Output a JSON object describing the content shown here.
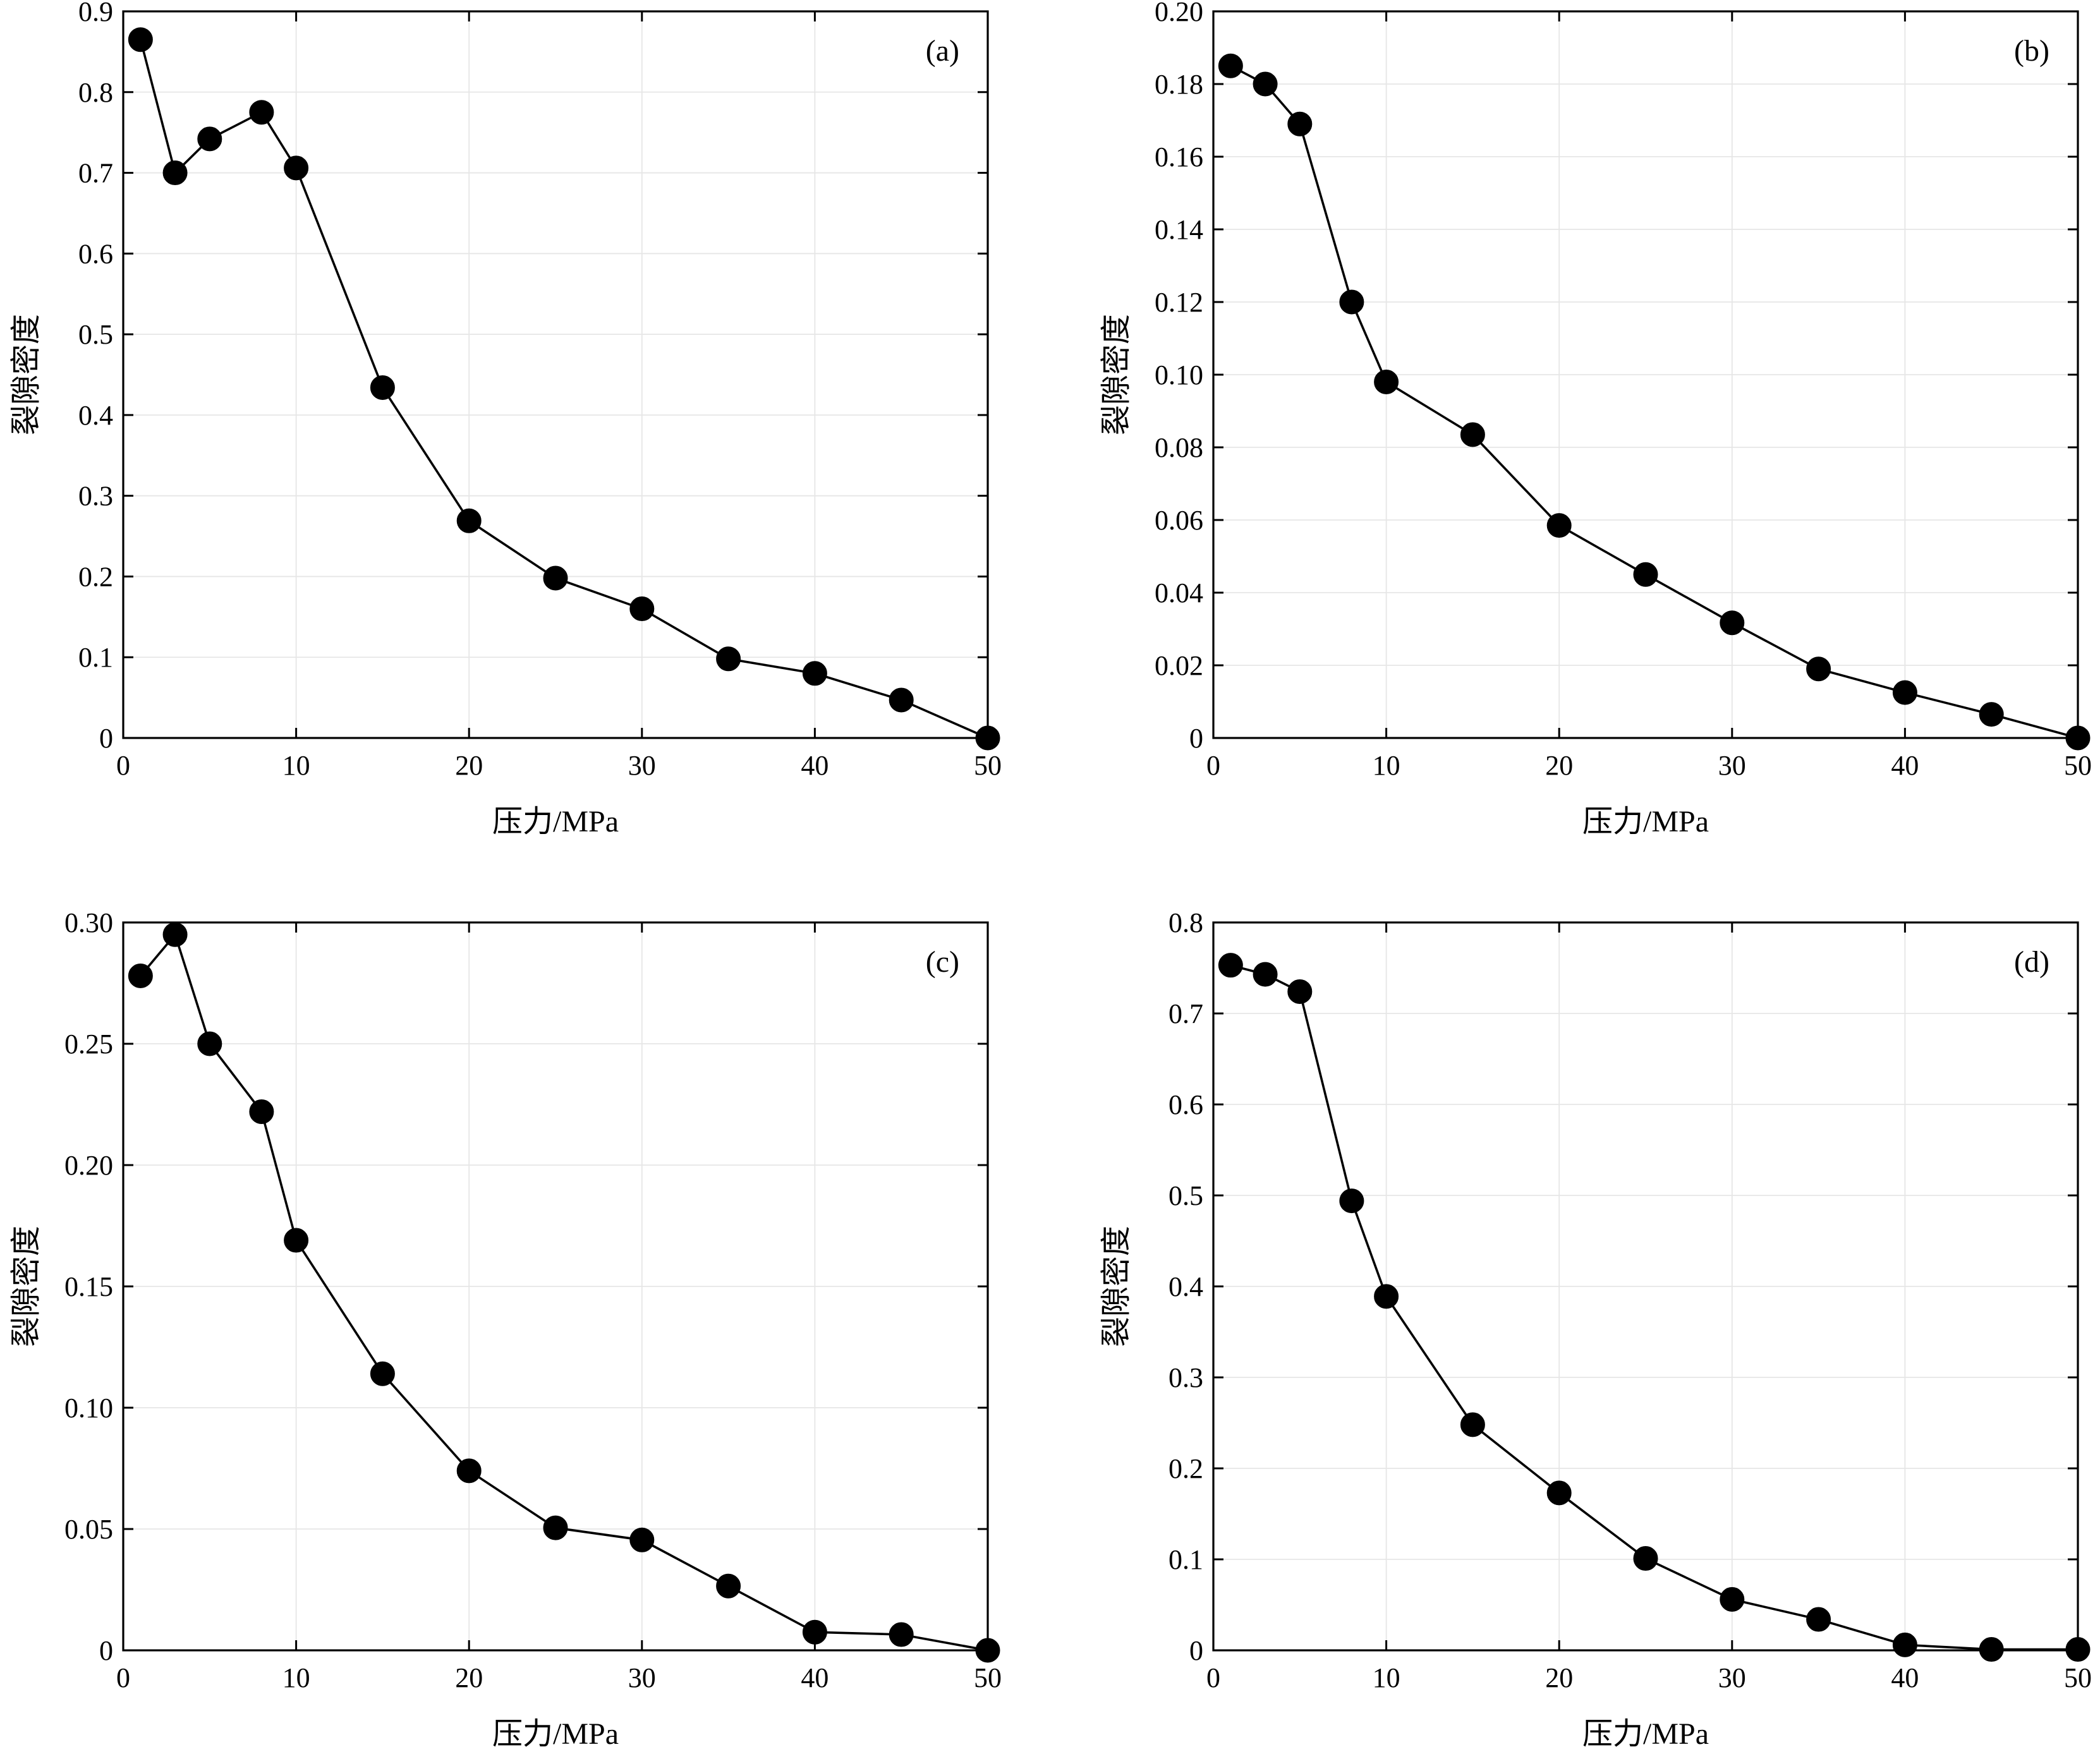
{
  "chart_data": [
    {
      "type": "line",
      "panel_label": "(a)",
      "xlabel": "压力/MPa",
      "ylabel": "裂隙密度",
      "xlim": [
        0,
        50
      ],
      "ylim": [
        0,
        0.9
      ],
      "xticks": [
        0,
        10,
        20,
        30,
        40,
        50
      ],
      "xtick_labels": [
        "0",
        "10",
        "20",
        "30",
        "40",
        "50"
      ],
      "yticks": [
        0,
        0.1,
        0.2,
        0.3,
        0.4,
        0.5,
        0.6,
        0.7,
        0.8,
        0.9
      ],
      "ytick_labels": [
        "0",
        "0.1",
        "0.2",
        "0.3",
        "0.4",
        "0.5",
        "0.6",
        "0.7",
        "0.8",
        "0.9"
      ],
      "grid": true,
      "color": "#000000",
      "marker": "filled-circle",
      "series": [
        {
          "x": [
            1,
            3,
            5,
            8,
            10,
            15,
            20,
            25,
            30,
            35,
            40,
            45,
            50
          ],
          "y": [
            0.865,
            0.7,
            0.742,
            0.775,
            0.706,
            0.434,
            0.269,
            0.198,
            0.16,
            0.098,
            0.08,
            0.047,
            0.0
          ]
        }
      ]
    },
    {
      "type": "line",
      "panel_label": "(b)",
      "xlabel": "压力/MPa",
      "ylabel": "裂隙密度",
      "xlim": [
        0,
        50
      ],
      "ylim": [
        0,
        0.2
      ],
      "xticks": [
        0,
        10,
        20,
        30,
        40,
        50
      ],
      "xtick_labels": [
        "0",
        "10",
        "20",
        "30",
        "40",
        "50"
      ],
      "yticks": [
        0,
        0.02,
        0.04,
        0.06,
        0.08,
        0.1,
        0.12,
        0.14,
        0.16,
        0.18,
        0.2
      ],
      "ytick_labels": [
        "0",
        "0.02",
        "0.04",
        "0.06",
        "0.08",
        "0.10",
        "0.12",
        "0.14",
        "0.16",
        "0.18",
        "0.20"
      ],
      "grid": true,
      "color": "#000000",
      "marker": "filled-circle",
      "series": [
        {
          "x": [
            1,
            3,
            5,
            8,
            10,
            15,
            20,
            25,
            30,
            35,
            40,
            45,
            50
          ],
          "y": [
            0.185,
            0.18,
            0.169,
            0.12,
            0.098,
            0.0835,
            0.0585,
            0.045,
            0.0317,
            0.019,
            0.0125,
            0.0065,
            0.0
          ]
        }
      ]
    },
    {
      "type": "line",
      "panel_label": "(c)",
      "xlabel": "压力/MPa",
      "ylabel": "裂隙密度",
      "xlim": [
        0,
        50
      ],
      "ylim": [
        0,
        0.3
      ],
      "xticks": [
        0,
        10,
        20,
        30,
        40,
        50
      ],
      "xtick_labels": [
        "0",
        "10",
        "20",
        "30",
        "40",
        "50"
      ],
      "yticks": [
        0,
        0.05,
        0.1,
        0.15,
        0.2,
        0.25,
        0.3
      ],
      "ytick_labels": [
        "0",
        "0.05",
        "0.10",
        "0.15",
        "0.20",
        "0.25",
        "0.30"
      ],
      "grid": true,
      "color": "#000000",
      "marker": "filled-circle",
      "series": [
        {
          "x": [
            1,
            3,
            5,
            8,
            10,
            15,
            20,
            25,
            30,
            35,
            40,
            45,
            50
          ],
          "y": [
            0.278,
            0.295,
            0.25,
            0.222,
            0.169,
            0.114,
            0.074,
            0.0505,
            0.0455,
            0.0265,
            0.0075,
            0.0065,
            0.0
          ]
        }
      ]
    },
    {
      "type": "line",
      "panel_label": "(d)",
      "xlabel": "压力/MPa",
      "ylabel": "裂隙密度",
      "xlim": [
        0,
        50
      ],
      "ylim": [
        0,
        0.8
      ],
      "xticks": [
        0,
        10,
        20,
        30,
        40,
        50
      ],
      "xtick_labels": [
        "0",
        "10",
        "20",
        "30",
        "40",
        "50"
      ],
      "yticks": [
        0,
        0.1,
        0.2,
        0.3,
        0.4,
        0.5,
        0.6,
        0.7,
        0.8
      ],
      "ytick_labels": [
        "0",
        "0.1",
        "0.2",
        "0.3",
        "0.4",
        "0.5",
        "0.6",
        "0.7",
        "0.8"
      ],
      "grid": true,
      "color": "#000000",
      "marker": "filled-circle",
      "series": [
        {
          "x": [
            1,
            3,
            5,
            8,
            10,
            15,
            20,
            25,
            30,
            35,
            40,
            45,
            50
          ],
          "y": [
            0.753,
            0.743,
            0.724,
            0.494,
            0.389,
            0.248,
            0.173,
            0.101,
            0.056,
            0.034,
            0.006,
            0.001,
            0.001
          ]
        }
      ]
    }
  ]
}
